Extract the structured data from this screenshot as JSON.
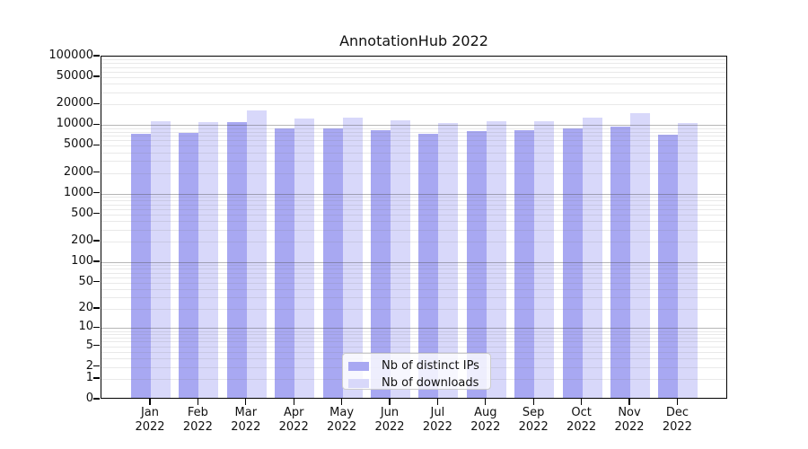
{
  "chart_data": {
    "type": "bar",
    "title": "AnnotationHub 2022",
    "categories": [
      "Jan 2022",
      "Feb 2022",
      "Mar 2022",
      "Apr 2022",
      "May 2022",
      "Jun 2022",
      "Jul 2022",
      "Aug 2022",
      "Sep 2022",
      "Oct 2022",
      "Nov 2022",
      "Dec 2022"
    ],
    "x_tick_months": [
      "Jan",
      "Feb",
      "Mar",
      "Apr",
      "May",
      "Jun",
      "Jul",
      "Aug",
      "Sep",
      "Oct",
      "Nov",
      "Dec"
    ],
    "x_tick_year": "2022",
    "series": [
      {
        "name": "Nb of distinct IPs",
        "color": "#a8a8f2",
        "values": [
          7400,
          7800,
          11000,
          8900,
          9100,
          8500,
          7450,
          8100,
          8400,
          8950,
          9600,
          7300
        ]
      },
      {
        "name": "Nb of downloads",
        "color": "#d8d8fa",
        "values": [
          11400,
          11200,
          16400,
          12400,
          13000,
          11700,
          10900,
          11500,
          11400,
          12700,
          14900,
          10900
        ]
      }
    ],
    "y_axis": {
      "scale": "log1p",
      "ticks": [
        0,
        1,
        2,
        5,
        10,
        20,
        50,
        100,
        200,
        500,
        1000,
        2000,
        5000,
        10000,
        20000,
        50000,
        100000
      ],
      "range": [
        0,
        100000
      ],
      "grid": true
    },
    "legend": {
      "position": "lower center"
    }
  }
}
